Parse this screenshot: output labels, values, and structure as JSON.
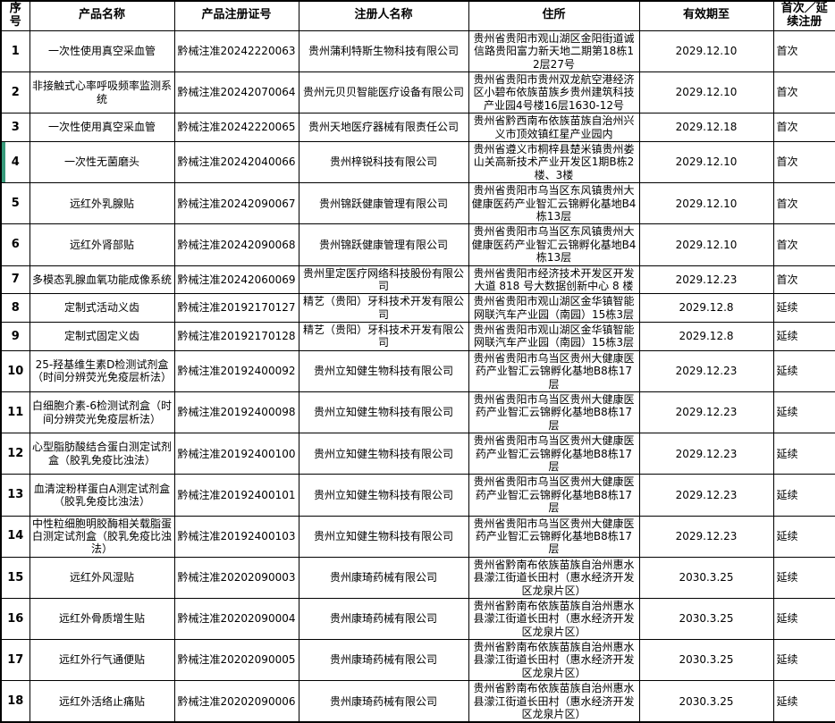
{
  "accent": {
    "row_highlight_color": "#399B7C",
    "grid_color": "#000000",
    "background_color": "#FFFFFF"
  },
  "table": {
    "headers": [
      "序号",
      "产品名称",
      "产品注册证号",
      "注册人名称",
      "住所",
      "有效期至",
      "首次／延续注册"
    ],
    "rows": [
      {
        "no": "1",
        "product": "一次性使用真空采血管",
        "reg_no": "黔械注准20242220063",
        "registrant": "贵州蒲利特斯生物科技有限公司",
        "address": "贵州省贵阳市观山湖区金阳街道诚信路贵阳富力新天地二期第18栋12层27号",
        "valid_until": "2029.12.10",
        "reg_type": "首次",
        "highlighted": false
      },
      {
        "no": "2",
        "product": "非接触式心率呼吸频率监测系统",
        "reg_no": "黔械注准20242070064",
        "registrant": "贵州元贝贝智能医疗设备有限公司",
        "address": "贵州省贵阳市贵州双龙航空港经济区小碧布依族苗族乡贵州建筑科技产业园4号楼16层1630-12号",
        "valid_until": "2029.12.10",
        "reg_type": "首次",
        "highlighted": false
      },
      {
        "no": "3",
        "product": "一次性使用真空采血管",
        "reg_no": "黔械注准20242220065",
        "registrant": "贵州天地医疗器械有限责任公司",
        "address": "贵州省黔西南布依族苗族自治州兴义市顶效镇红星产业园内",
        "valid_until": "2029.12.18",
        "reg_type": "首次",
        "highlighted": false
      },
      {
        "no": "4",
        "product": "一次性无菌磨头",
        "reg_no": "黔械注准20242040066",
        "registrant": "贵州梓锐科技有限公司",
        "address": "贵州省遵义市桐梓县楚米镇贵州娄山关高新技术产业开发区1期B栋2楼、3楼",
        "valid_until": "2029.12.10",
        "reg_type": "首次",
        "highlighted": true
      },
      {
        "no": "5",
        "product": "远红外乳腺贴",
        "reg_no": "黔械注准20242090067",
        "registrant": "贵州锦跃健康管理有限公司",
        "address": "贵州省贵阳市乌当区东风镇贵州大健康医药产业智汇云锦孵化基地B4栋13层",
        "valid_until": "2029.12.10",
        "reg_type": "首次",
        "highlighted": false
      },
      {
        "no": "6",
        "product": "远红外肾部贴",
        "reg_no": "黔械注准20242090068",
        "registrant": "贵州锦跃健康管理有限公司",
        "address": "贵州省贵阳市乌当区东风镇贵州大健康医药产业智汇云锦孵化基地B4栋13层",
        "valid_until": "2029.12.10",
        "reg_type": "首次",
        "highlighted": false
      },
      {
        "no": "7",
        "product": "多模态乳腺血氧功能成像系统",
        "reg_no": "黔械注准20242060069",
        "registrant": "贵州里定医疗网络科技股份有限公司",
        "address": "贵州省贵阳市经济技术开发区开发大道 818 号大数据创新中心 8 楼",
        "valid_until": "2029.12.23",
        "reg_type": "首次",
        "highlighted": false
      },
      {
        "no": "8",
        "product": "定制式活动义齿",
        "reg_no": "黔械注准20192170127",
        "registrant": "精艺（贵阳）牙科技术开发有限公司",
        "address": "贵州省贵阳市观山湖区金华镇智能网联汽车产业园（南园）15栋3层",
        "valid_until": "2029.12.8",
        "reg_type": "延续",
        "highlighted": false
      },
      {
        "no": "9",
        "product": "定制式固定义齿",
        "reg_no": "黔械注准20192170128",
        "registrant": "精艺（贵阳）牙科技术开发有限公司",
        "address": "贵州省贵阳市观山湖区金华镇智能网联汽车产业园（南园）15栋3层",
        "valid_until": "2029.12.8",
        "reg_type": "延续",
        "highlighted": false
      },
      {
        "no": "10",
        "product": "25-羟基维生素D检测试剂盒（时间分辨荧光免疫层析法）",
        "reg_no": "黔械注准20192400092",
        "registrant": "贵州立知健生物科技有限公司",
        "address": "贵州省贵阳市乌当区贵州大健康医药产业智汇云锦孵化基地B8栋17层",
        "valid_until": "2029.12.23",
        "reg_type": "延续",
        "highlighted": false
      },
      {
        "no": "11",
        "product": "白细胞介素-6检测试剂盒（时间分辨荧光免疫层析法）",
        "reg_no": "黔械注准20192400098",
        "registrant": "贵州立知健生物科技有限公司",
        "address": "贵州省贵阳市乌当区贵州大健康医药产业智汇云锦孵化基地B8栋17层",
        "valid_until": "2029.12.23",
        "reg_type": "延续",
        "highlighted": false
      },
      {
        "no": "12",
        "product": "心型脂肪酸结合蛋白测定试剂盒（胶乳免疫比浊法）",
        "reg_no": "黔械注准20192400100",
        "registrant": "贵州立知健生物科技有限公司",
        "address": "贵州省贵阳市乌当区贵州大健康医药产业智汇云锦孵化基地B8栋17层",
        "valid_until": "2029.12.23",
        "reg_type": "延续",
        "highlighted": false
      },
      {
        "no": "13",
        "product": "血清淀粉样蛋白A测定试剂盒（胶乳免疫比浊法）",
        "reg_no": "黔械注准20192400101",
        "registrant": "贵州立知健生物科技有限公司",
        "address": "贵州省贵阳市乌当区贵州大健康医药产业智汇云锦孵化基地B8栋17层",
        "valid_until": "2029.12.23",
        "reg_type": "延续",
        "highlighted": false
      },
      {
        "no": "14",
        "product": "中性粒细胞明胶酶相关载脂蛋白测定试剂盒（胶乳免疫比浊法）",
        "reg_no": "黔械注准20192400103",
        "registrant": "贵州立知健生物科技有限公司",
        "address": "贵州省贵阳市乌当区贵州大健康医药产业智汇云锦孵化基地B8栋17层",
        "valid_until": "2029.12.23",
        "reg_type": "延续",
        "highlighted": false
      },
      {
        "no": "15",
        "product": "远红外风湿贴",
        "reg_no": "黔械注准20202090003",
        "registrant": "贵州康琦药械有限公司",
        "address": "贵州省黔南布依族苗族自治州惠水县濛江街道长田村（惠水经济开发区龙泉片区）",
        "valid_until": "2030.3.25",
        "reg_type": "延续",
        "highlighted": false
      },
      {
        "no": "16",
        "product": "远红外骨质增生贴",
        "reg_no": "黔械注准20202090004",
        "registrant": "贵州康琦药械有限公司",
        "address": "贵州省黔南布依族苗族自治州惠水县濛江街道长田村（惠水经济开发区龙泉片区）",
        "valid_until": "2030.3.25",
        "reg_type": "延续",
        "highlighted": false
      },
      {
        "no": "17",
        "product": "远红外行气通便贴",
        "reg_no": "黔械注准20202090005",
        "registrant": "贵州康琦药械有限公司",
        "address": "贵州省黔南布依族苗族自治州惠水县濛江街道长田村（惠水经济开发区龙泉片区）",
        "valid_until": "2030.3.25",
        "reg_type": "延续",
        "highlighted": false
      },
      {
        "no": "18",
        "product": "远红外活络止痛贴",
        "reg_no": "黔械注准20202090006",
        "registrant": "贵州康琦药械有限公司",
        "address": "贵州省黔南布依族苗族自治州惠水县濛江街道长田村（惠水经济开发区龙泉片区）",
        "valid_until": "2030.3.25",
        "reg_type": "延续",
        "highlighted": false
      }
    ]
  }
}
